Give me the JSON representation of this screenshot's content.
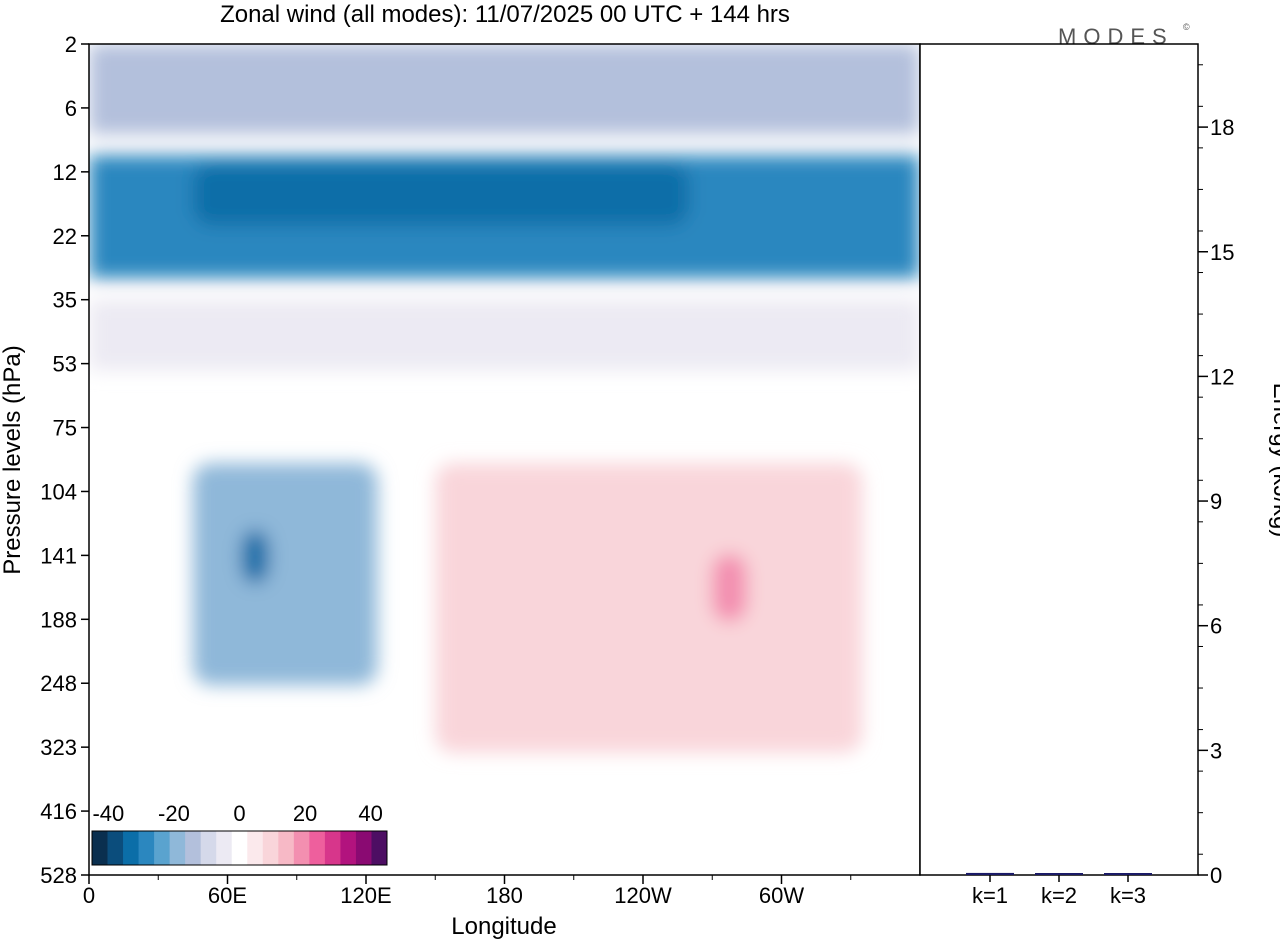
{
  "brand": "MODES",
  "brand_mark": "©",
  "chart_data": [
    {
      "type": "heatmap",
      "title": "Zonal wind (all modes):  11/07/2025  00 UTC  + 144 hrs",
      "xlabel": "Longitude",
      "ylabel": "Pressure levels (hPa)",
      "x_ticks": [
        "0",
        "60E",
        "120E",
        "180",
        "120W",
        "60W"
      ],
      "x_tick_values": [
        0,
        60,
        120,
        180,
        240,
        300
      ],
      "xlim": [
        0,
        360
      ],
      "y_ticks": [
        "2",
        "6",
        "12",
        "22",
        "35",
        "53",
        "75",
        "104",
        "141",
        "188",
        "248",
        "323",
        "416",
        "528"
      ],
      "colorbar": {
        "tick_labels": [
          "-40",
          "-20",
          "0",
          "20",
          "40"
        ],
        "tick_values": [
          -40,
          -20,
          0,
          20,
          40
        ],
        "range": [
          -45,
          45
        ],
        "step": 5,
        "colors": [
          "#0a2f4f",
          "#0b4d7c",
          "#0b6ea8",
          "#2b87bf",
          "#5aa3cf",
          "#8fb8d9",
          "#b3c0dc",
          "#d5d9ea",
          "#eceaf3",
          "#ffffff",
          "#fbe9ec",
          "#f9d5da",
          "#f7b9c6",
          "#f38fb0",
          "#ee5f9d",
          "#d7368b",
          "#b2137e",
          "#8a0a72",
          "#4d0e63"
        ]
      },
      "regions": [
        {
          "name": "upper-stratosphere-easterlies",
          "pressure_hPa": [
            2,
            8
          ],
          "lon": [
            0,
            360
          ],
          "value": -15
        },
        {
          "name": "stratospheric-easterly-jet",
          "pressure_hPa": [
            10,
            30
          ],
          "lon": [
            0,
            360
          ],
          "value": -30
        },
        {
          "name": "jet-core",
          "pressure_hPa": [
            11,
            20
          ],
          "lon": [
            45,
            260
          ],
          "value": -35
        },
        {
          "name": "tropopause-layer",
          "pressure_hPa": [
            35,
            55
          ],
          "lon": [
            0,
            360
          ],
          "value": -5
        },
        {
          "name": "upper-trop-easterlies-asia",
          "pressure_hPa": [
            90,
            250
          ],
          "lon": [
            45,
            125
          ],
          "value": -20
        },
        {
          "name": "easterly-core-70E",
          "pressure_hPa": [
            125,
            160
          ],
          "lon": [
            66,
            78
          ],
          "value": -35
        },
        {
          "name": "westerlies-pacific",
          "pressure_hPa": [
            90,
            330
          ],
          "lon": [
            150,
            335
          ],
          "value": 10
        },
        {
          "name": "westerly-maxima-100W",
          "pressure_hPa": [
            140,
            190
          ],
          "lon": [
            270,
            285
          ],
          "value": 20
        }
      ]
    },
    {
      "type": "bar",
      "categories": [
        "k=1",
        "k=2",
        "k=3"
      ],
      "values": [
        0.05,
        0.02,
        0.02
      ],
      "ylabel": "Energy (kJ/kg)",
      "ylim": [
        0,
        20
      ],
      "y_ticks": [
        "0",
        "3",
        "6",
        "9",
        "12",
        "15",
        "18"
      ],
      "y_tick_values": [
        0,
        3,
        6,
        9,
        12,
        15,
        18
      ],
      "bar_color": "#1a1a66"
    }
  ]
}
